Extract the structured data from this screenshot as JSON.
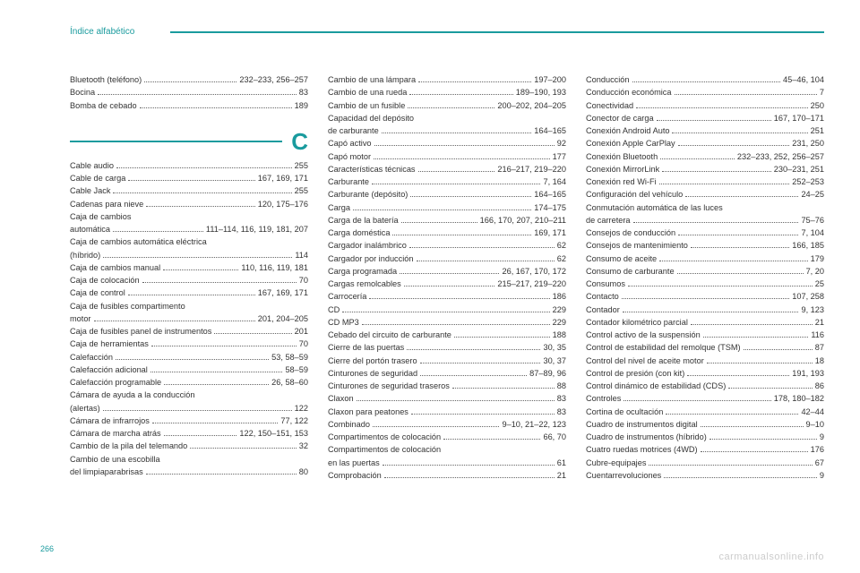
{
  "header": {
    "title": "Índice alfabético"
  },
  "page_number": "266",
  "watermark": "carmanualsonline.info",
  "section_letter": "C",
  "colors": {
    "accent": "#1a9b9e",
    "text": "#333333",
    "watermark": "#cccccc",
    "background": "#ffffff"
  },
  "columns": [
    {
      "before_section": [
        {
          "label": "Bluetooth (teléfono)",
          "page": "232–233, 256–257"
        },
        {
          "label": "Bocina",
          "page": "83"
        },
        {
          "label": "Bomba de cebado",
          "page": "189"
        }
      ],
      "after_section": [
        {
          "label": "Cable audio",
          "page": "255"
        },
        {
          "label": "Cable de carga",
          "page": "167, 169, 171"
        },
        {
          "label": "Cable Jack",
          "page": "255"
        },
        {
          "label": "Cadenas para nieve",
          "page": "120, 175–176"
        },
        {
          "cont": "Caja de cambios"
        },
        {
          "label": "automática",
          "page": "111–114, 116, 119, 181, 207"
        },
        {
          "cont": "Caja de cambios automática eléctrica"
        },
        {
          "label": "(híbrido)",
          "page": "114"
        },
        {
          "label": "Caja de cambios manual",
          "page": "110, 116, 119, 181"
        },
        {
          "label": "Caja de colocación",
          "page": "70"
        },
        {
          "label": "Caja de control",
          "page": "167, 169, 171"
        },
        {
          "cont": "Caja de fusibles compartimento"
        },
        {
          "label": "motor",
          "page": "201, 204–205"
        },
        {
          "label": "Caja de fusibles panel de instrumentos",
          "page": "201"
        },
        {
          "label": "Caja de herramientas",
          "page": "70"
        },
        {
          "label": "Calefacción",
          "page": "53, 58–59"
        },
        {
          "label": "Calefacción adicional",
          "page": "58–59"
        },
        {
          "label": "Calefacción programable",
          "page": "26, 58–60"
        },
        {
          "cont": "Cámara de ayuda a la conducción"
        },
        {
          "label": "(alertas)",
          "page": "122"
        },
        {
          "label": "Cámara de infrarrojos",
          "page": "77, 122"
        },
        {
          "label": "Cámara de marcha atrás",
          "page": "122, 150–151, 153"
        },
        {
          "label": "Cambio de la pila del telemando",
          "page": "32"
        },
        {
          "cont": "Cambio de una escobilla"
        },
        {
          "label": "del limpiaparabrisas",
          "page": "80"
        }
      ]
    },
    {
      "entries": [
        {
          "label": "Cambio de una lámpara",
          "page": "197–200"
        },
        {
          "label": "Cambio de una rueda",
          "page": "189–190, 193"
        },
        {
          "label": "Cambio de un fusible",
          "page": "200–202, 204–205"
        },
        {
          "cont": "Capacidad del depósito"
        },
        {
          "label": "de carburante",
          "page": "164–165"
        },
        {
          "label": "Capó activo",
          "page": "92"
        },
        {
          "label": "Capó motor",
          "page": "177"
        },
        {
          "label": "Características técnicas",
          "page": "216–217, 219–220"
        },
        {
          "label": "Carburante",
          "page": "7, 164"
        },
        {
          "label": "Carburante (depósito)",
          "page": "164–165"
        },
        {
          "label": "Carga",
          "page": "174–175"
        },
        {
          "label": "Carga de la batería",
          "page": "166, 170, 207, 210–211"
        },
        {
          "label": "Carga doméstica",
          "page": "169, 171"
        },
        {
          "label": "Cargador inalámbrico",
          "page": "62"
        },
        {
          "label": "Cargador por inducción",
          "page": "62"
        },
        {
          "label": "Carga programada",
          "page": "26, 167, 170, 172"
        },
        {
          "label": "Cargas remolcables",
          "page": "215–217, 219–220"
        },
        {
          "label": "Carrocería",
          "page": "186"
        },
        {
          "label": "CD",
          "page": "229"
        },
        {
          "label": "CD MP3",
          "page": "229"
        },
        {
          "label": "Cebado del circuito de carburante",
          "page": "188"
        },
        {
          "label": "Cierre de las puertas",
          "page": "30, 35"
        },
        {
          "label": "Cierre del portón trasero",
          "page": "30, 37"
        },
        {
          "label": "Cinturones de seguridad",
          "page": "87–89, 96"
        },
        {
          "label": "Cinturones de seguridad traseros",
          "page": "88"
        },
        {
          "label": "Claxon",
          "page": "83"
        },
        {
          "label": "Claxon para peatones",
          "page": "83"
        },
        {
          "label": "Combinado",
          "page": "9–10, 21–22, 123"
        },
        {
          "label": "Compartimentos de colocación",
          "page": "66, 70"
        },
        {
          "cont": "Compartimentos de colocación"
        },
        {
          "label": "en las puertas",
          "page": "61"
        },
        {
          "label": "Comprobación",
          "page": "21"
        }
      ]
    },
    {
      "entries": [
        {
          "label": "Conducción",
          "page": "45–46, 104"
        },
        {
          "label": "Conducción económica",
          "page": "7"
        },
        {
          "label": "Conectividad",
          "page": "250"
        },
        {
          "label": "Conector de carga",
          "page": "167, 170–171"
        },
        {
          "label": "Conexión Android Auto",
          "page": "251"
        },
        {
          "label": "Conexión Apple CarPlay",
          "page": "231, 250"
        },
        {
          "label": "Conexión Bluetooth",
          "page": "232–233, 252, 256–257"
        },
        {
          "label": "Conexión MirrorLink",
          "page": "230–231, 251"
        },
        {
          "label": "Conexión red Wi-Fi",
          "page": "252–253"
        },
        {
          "label": "Configuración del vehículo",
          "page": "24–25"
        },
        {
          "cont": "Conmutación automática de las luces"
        },
        {
          "label": "de carretera",
          "page": "75–76"
        },
        {
          "label": "Consejos de conducción",
          "page": "7, 104"
        },
        {
          "label": "Consejos de mantenimiento",
          "page": "166, 185"
        },
        {
          "label": "Consumo de aceite",
          "page": "179"
        },
        {
          "label": "Consumo de carburante",
          "page": "7, 20"
        },
        {
          "label": "Consumos",
          "page": "25"
        },
        {
          "label": "Contacto",
          "page": "107, 258"
        },
        {
          "label": "Contador",
          "page": "9, 123"
        },
        {
          "label": "Contador kilométrico parcial",
          "page": "21"
        },
        {
          "label": "Control activo de la suspensión",
          "page": "116"
        },
        {
          "label": "Control de estabilidad del remolque (TSM)",
          "page": "87"
        },
        {
          "label": "Control del nivel de aceite motor",
          "page": "18"
        },
        {
          "label": "Control de presión (con kit)",
          "page": "191, 193"
        },
        {
          "label": "Control dinámico de estabilidad (CDS)",
          "page": "86"
        },
        {
          "label": "Controles",
          "page": "178, 180–182"
        },
        {
          "label": "Cortina de ocultación",
          "page": "42–44"
        },
        {
          "label": "Cuadro de instrumentos digital",
          "page": "9–10"
        },
        {
          "label": "Cuadro de instrumentos (híbrido)",
          "page": "9"
        },
        {
          "label": "Cuatro ruedas motrices (4WD)",
          "page": "176"
        },
        {
          "label": "Cubre-equipajes",
          "page": "67"
        },
        {
          "label": "Cuentarrevoluciones",
          "page": "9"
        }
      ]
    }
  ]
}
